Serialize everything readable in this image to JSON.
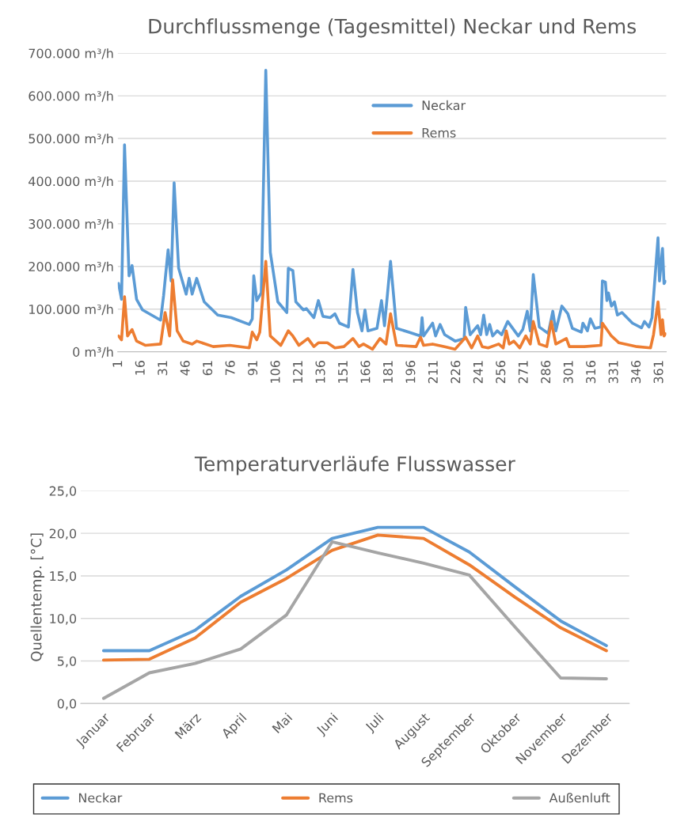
{
  "chart_data": [
    {
      "type": "line",
      "title": "Durchflussmenge (Tagesmittel) Neckar und Rems",
      "xlim": [
        0.5,
        365.5
      ],
      "xticks": [
        1,
        16,
        31,
        46,
        61,
        76,
        91,
        106,
        121,
        136,
        151,
        166,
        181,
        196,
        211,
        226,
        241,
        256,
        271,
        286,
        301,
        316,
        331,
        346,
        361
      ],
      "ylim": [
        0,
        700000
      ],
      "yticks": [
        {
          "value": 0,
          "label": "0 m³/h"
        },
        {
          "value": 100000,
          "label": "100.000 m³/h"
        },
        {
          "value": 200000,
          "label": "200.000 m³/h"
        },
        {
          "value": 300000,
          "label": "300.000 m³/h"
        },
        {
          "value": 400000,
          "label": "400.000 m³/h"
        },
        {
          "value": 500000,
          "label": "500.000 m³/h"
        },
        {
          "value": 600000,
          "label": "600.000 m³/h"
        },
        {
          "value": 700000,
          "label": "700.000 m³/h"
        }
      ],
      "grid": "y",
      "legend": "top",
      "marker": "none",
      "line_style": "solid",
      "series": [
        {
          "name": "Neckar",
          "color": "#5b9bd5",
          "x": [
            1,
            3,
            5,
            8,
            10,
            13,
            17,
            29,
            31,
            34,
            36,
            38,
            41,
            46,
            48,
            50,
            53,
            58,
            67,
            76,
            88,
            90,
            91,
            93,
            96,
            99,
            102,
            107,
            113,
            114,
            117,
            119,
            124,
            126,
            131,
            134,
            137,
            142,
            145,
            148,
            154,
            157,
            160,
            163,
            165,
            167,
            173,
            176,
            178,
            182,
            186,
            194,
            202,
            203,
            204,
            210,
            212,
            215,
            218,
            225,
            231,
            232,
            235,
            240,
            242,
            244,
            246,
            248,
            250,
            253,
            256,
            260,
            267,
            270,
            273,
            275,
            277,
            281,
            287,
            290,
            292,
            296,
            300,
            303,
            309,
            310,
            313,
            315,
            318,
            322,
            323,
            325,
            326,
            327,
            329,
            331,
            333,
            336,
            343,
            349,
            351,
            354,
            356,
            360,
            361,
            363,
            364,
            365
          ],
          "values": [
            160000,
            123000,
            485000,
            178000,
            202000,
            123000,
            98000,
            74000,
            132000,
            239000,
            166000,
            396000,
            196000,
            135000,
            172000,
            135000,
            172000,
            117000,
            86000,
            80000,
            64000,
            77000,
            178000,
            120000,
            138000,
            660000,
            233000,
            117000,
            92000,
            196000,
            190000,
            117000,
            98000,
            101000,
            80000,
            120000,
            83000,
            80000,
            89000,
            67000,
            58000,
            193000,
            92000,
            49000,
            98000,
            49000,
            55000,
            120000,
            61000,
            212000,
            55000,
            46000,
            37000,
            80000,
            37000,
            67000,
            37000,
            64000,
            40000,
            25000,
            31000,
            104000,
            40000,
            61000,
            40000,
            86000,
            40000,
            64000,
            37000,
            49000,
            40000,
            71000,
            37000,
            52000,
            95000,
            49000,
            181000,
            58000,
            43000,
            95000,
            49000,
            107000,
            89000,
            55000,
            46000,
            67000,
            49000,
            77000,
            55000,
            58000,
            166000,
            163000,
            120000,
            138000,
            107000,
            117000,
            86000,
            92000,
            67000,
            56000,
            71000,
            58000,
            80000,
            267000,
            166000,
            242000,
            160000,
            165000
          ]
        },
        {
          "name": "Rems",
          "color": "#ed7d31",
          "x": [
            1,
            3,
            5,
            7,
            10,
            13,
            19,
            29,
            32,
            35,
            37,
            40,
            44,
            50,
            53,
            64,
            75,
            88,
            90,
            93,
            95,
            99,
            102,
            109,
            114,
            117,
            121,
            127,
            131,
            134,
            140,
            145,
            151,
            157,
            161,
            164,
            170,
            175,
            179,
            182,
            186,
            199,
            202,
            204,
            210,
            218,
            225,
            232,
            236,
            240,
            243,
            247,
            254,
            257,
            259,
            261,
            264,
            268,
            272,
            275,
            277,
            281,
            286,
            289,
            292,
            299,
            301,
            311,
            322,
            323,
            329,
            334,
            346,
            355,
            357,
            360,
            362,
            363,
            364,
            365
          ],
          "values": [
            37000,
            28000,
            129000,
            37000,
            52000,
            25000,
            15000,
            18000,
            92000,
            37000,
            169000,
            49000,
            25000,
            18000,
            25000,
            12000,
            15000,
            9000,
            46000,
            28000,
            46000,
            212000,
            37000,
            15000,
            49000,
            37000,
            15000,
            31000,
            12000,
            21000,
            21000,
            9000,
            12000,
            31000,
            12000,
            18000,
            6000,
            31000,
            18000,
            89000,
            15000,
            12000,
            34000,
            15000,
            18000,
            12000,
            6000,
            34000,
            9000,
            37000,
            12000,
            9000,
            18000,
            9000,
            49000,
            18000,
            25000,
            9000,
            37000,
            18000,
            71000,
            18000,
            12000,
            71000,
            18000,
            31000,
            12000,
            12000,
            15000,
            67000,
            37000,
            21000,
            12000,
            9000,
            40000,
            117000,
            40000,
            75000,
            37000,
            42000
          ]
        }
      ]
    },
    {
      "type": "line",
      "title": "Temperaturverläufe Flusswasser",
      "ylabel": "Quellentemp. [°C]",
      "categories": [
        "Januar",
        "Februar",
        "März",
        "April",
        "Mai",
        "Juni",
        "Juli",
        "August",
        "September",
        "Oktober",
        "November",
        "Dezember"
      ],
      "ylim": [
        0,
        25
      ],
      "yticks": [
        {
          "value": 0,
          "label": "0,0"
        },
        {
          "value": 5,
          "label": "5,0"
        },
        {
          "value": 10,
          "label": "10,0"
        },
        {
          "value": 15,
          "label": "15,0"
        },
        {
          "value": 20,
          "label": "20,0"
        },
        {
          "value": 25,
          "label": "25,0"
        }
      ],
      "grid": "y",
      "legend": "bottom",
      "marker": "none",
      "line_style": "solid",
      "series": [
        {
          "name": "Neckar",
          "color": "#5b9bd5",
          "values": [
            6.2,
            6.2,
            8.6,
            12.6,
            15.7,
            19.4,
            20.7,
            20.7,
            17.8,
            13.7,
            9.7,
            6.8
          ]
        },
        {
          "name": "Rems",
          "color": "#ed7d31",
          "values": [
            5.1,
            5.2,
            7.7,
            11.9,
            14.7,
            18.0,
            19.8,
            19.4,
            16.3,
            12.5,
            8.9,
            6.2
          ]
        },
        {
          "name": "Außenluft",
          "color": "#a5a5a5",
          "values": [
            0.6,
            3.6,
            4.7,
            6.4,
            10.4,
            19.0,
            17.7,
            16.5,
            15.1,
            9.0,
            3.0,
            2.9
          ]
        }
      ]
    }
  ]
}
